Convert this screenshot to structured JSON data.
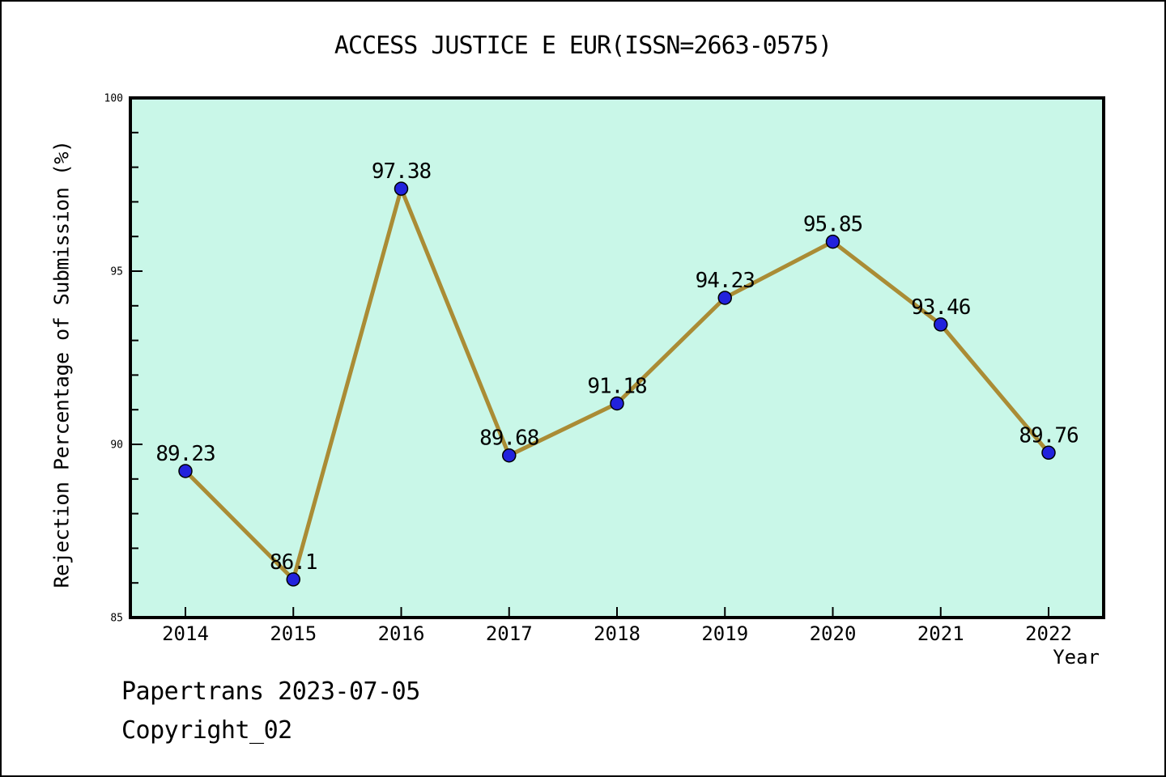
{
  "title": "ACCESS JUSTICE E EUR(ISSN=2663-0575)",
  "footer": {
    "line1": "Papertrans 2023-07-05",
    "line2": "Copyright_02"
  },
  "chart_data": {
    "type": "line",
    "title": "ACCESS JUSTICE E EUR(ISSN=2663-0575)",
    "categories": [
      "2014",
      "2015",
      "2016",
      "2017",
      "2018",
      "2019",
      "2020",
      "2021",
      "2022"
    ],
    "values": [
      89.23,
      86.1,
      97.38,
      89.68,
      91.18,
      94.23,
      95.85,
      93.46,
      89.76
    ],
    "point_labels": [
      "89.23",
      "86.1",
      "97.38",
      "89.68",
      "91.18",
      "94.23",
      "95.85",
      "93.46",
      "89.76"
    ],
    "xlabel": "Year",
    "ylabel": "Rejection Percentage of Submission (%)",
    "ylim": [
      85,
      100
    ],
    "ytick_major": [
      85,
      90,
      95,
      100
    ],
    "ytick_minor_step": 1,
    "grid": false,
    "legend": false,
    "colors": {
      "line": "#aa8c35",
      "marker_fill": "#2222dd",
      "marker_edge": "#000000",
      "plot_background": "#c9f7e8",
      "text": "#000000",
      "figure_background": "#ffffff"
    }
  }
}
